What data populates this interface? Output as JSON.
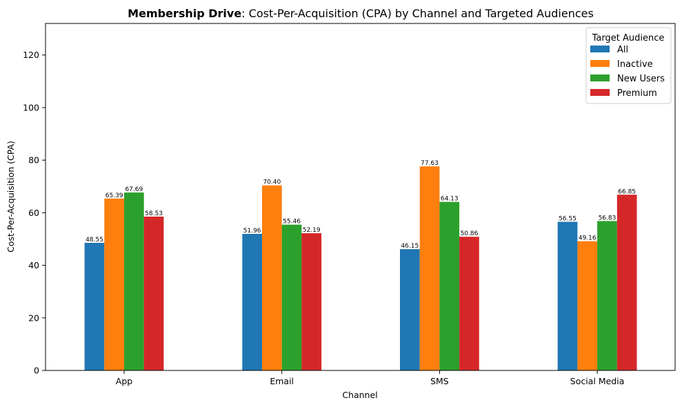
{
  "chart_data": {
    "type": "bar",
    "title_bold": "Membership Drive",
    "title_rest": ": Cost-Per-Acquisition (CPA) by Channel and Targeted Audiences",
    "xlabel": "Channel",
    "ylabel": "Cost-Per-Acquisition (CPA)",
    "categories": [
      "App",
      "Email",
      "SMS",
      "Social Media"
    ],
    "ylim": [
      0,
      132
    ],
    "yticks": [
      0,
      20,
      40,
      60,
      80,
      100,
      120
    ],
    "legend_title": "Target Audience",
    "legend_position": "top-right",
    "grid": false,
    "series": [
      {
        "name": "All",
        "color": "#1f77b4",
        "values": [
          48.55,
          51.96,
          46.15,
          56.55
        ]
      },
      {
        "name": "Inactive",
        "color": "#ff7f0e",
        "values": [
          65.39,
          70.4,
          77.63,
          49.16
        ]
      },
      {
        "name": "New Users",
        "color": "#2ca02c",
        "values": [
          67.69,
          55.46,
          64.13,
          56.83
        ]
      },
      {
        "name": "Premium",
        "color": "#d62728",
        "values": [
          58.53,
          52.19,
          50.86,
          66.85
        ]
      }
    ]
  }
}
